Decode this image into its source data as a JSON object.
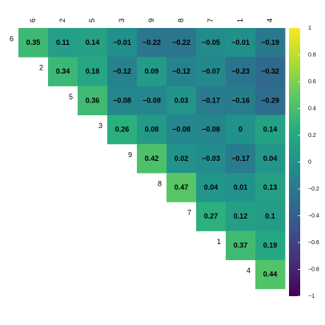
{
  "chart_data": {
    "type": "heatmap",
    "layout": "upper-triangle correlation matrix",
    "variables": [
      "6",
      "2",
      "5",
      "3",
      "9",
      "8",
      "7",
      "1",
      "4"
    ],
    "matrix": [
      [
        0.35,
        0.11,
        0.14,
        -0.01,
        -0.22,
        -0.22,
        -0.05,
        -0.01,
        -0.19
      ],
      [
        null,
        0.34,
        0.18,
        -0.12,
        0.09,
        -0.12,
        -0.07,
        -0.23,
        -0.32
      ],
      [
        null,
        null,
        0.36,
        -0.08,
        -0.08,
        0.03,
        -0.17,
        -0.16,
        -0.29
      ],
      [
        null,
        null,
        null,
        0.26,
        0.08,
        -0.08,
        -0.08,
        0,
        0.14
      ],
      [
        null,
        null,
        null,
        null,
        0.42,
        0.02,
        -0.03,
        -0.17,
        0.04
      ],
      [
        null,
        null,
        null,
        null,
        null,
        0.47,
        0.04,
        0.01,
        0.13
      ],
      [
        null,
        null,
        null,
        null,
        null,
        null,
        0.27,
        0.12,
        0.1
      ],
      [
        null,
        null,
        null,
        null,
        null,
        null,
        null,
        0.37,
        0.19
      ],
      [
        null,
        null,
        null,
        null,
        null,
        null,
        null,
        null,
        0.44
      ]
    ],
    "value_labels": [
      [
        "0.35",
        "0.11",
        "0.14",
        "−0.01",
        "−0.22",
        "−0.22",
        "−0.05",
        "−0.01",
        "−0.19"
      ],
      [
        null,
        "0.34",
        "0.18",
        "−0.12",
        "0.09",
        "−0.12",
        "−0.07",
        "−0.23",
        "−0.32"
      ],
      [
        null,
        null,
        "0.36",
        "−0.08",
        "−0.08",
        "0.03",
        "−0.17",
        "−0.16",
        "−0.29"
      ],
      [
        null,
        null,
        null,
        "0.26",
        "0.08",
        "−0.08",
        "−0.08",
        "0",
        "0.14"
      ],
      [
        null,
        null,
        null,
        null,
        "0.42",
        "0.02",
        "−0.03",
        "−0.17",
        "0.04"
      ],
      [
        null,
        null,
        null,
        null,
        null,
        "0.47",
        "0.04",
        "0.01",
        "0.13"
      ],
      [
        null,
        null,
        null,
        null,
        null,
        null,
        "0.27",
        "0.12",
        "0.1"
      ],
      [
        null,
        null,
        null,
        null,
        null,
        null,
        null,
        "0.37",
        "0.19"
      ],
      [
        null,
        null,
        null,
        null,
        null,
        null,
        null,
        null,
        "0.44"
      ]
    ],
    "color_scale": {
      "name": "viridis",
      "range": [
        -1,
        1
      ],
      "ticks": [
        1,
        0.8,
        0.6,
        0.4,
        0.2,
        0,
        -0.2,
        -0.4,
        -0.6,
        -0.8,
        -1
      ],
      "tick_labels": [
        "1",
        "0.8",
        "0.6",
        "0.4",
        "0.2",
        "0",
        "−0.2",
        "−0.4",
        "−0.6",
        "−0.8",
        "−1"
      ],
      "stops": [
        "#440154",
        "#472d7b",
        "#3b528b",
        "#2c728e",
        "#21918c",
        "#28ae80",
        "#5ec962",
        "#addc30",
        "#fde725"
      ]
    },
    "column_labels_position": "top, rotated",
    "row_labels_position": "left of diagonal",
    "legend": "right",
    "grid": false
  }
}
